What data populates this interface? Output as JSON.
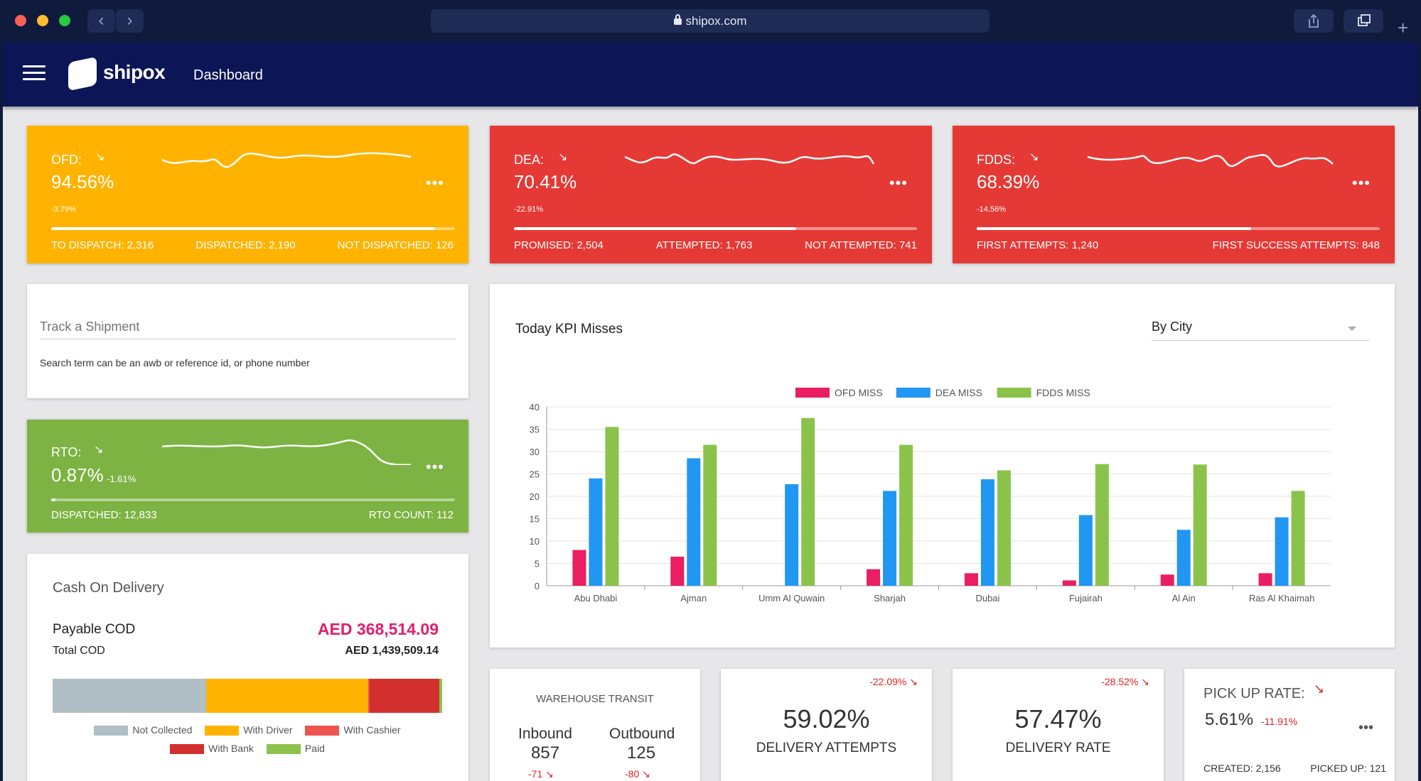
{
  "browser": {
    "url": "shipox.com"
  },
  "app": {
    "logo_text": "shipox",
    "page_title": "Dashboard"
  },
  "kpis": [
    {
      "label": "OFD:",
      "value": "94.56%",
      "delta": "-3.79%",
      "progress": 0.95,
      "color": "#ffb300",
      "stats": [
        "TO DISPATCH: 2,316",
        "DISPATCHED: 2,190",
        "NOT DISPATCHED: 126"
      ]
    },
    {
      "label": "DEA:",
      "value": "70.41%",
      "delta": "-22.91%",
      "progress": 0.7,
      "color": "#e53935",
      "stats": [
        "PROMISED: 2,504",
        "ATTEMPTED: 1,763",
        "NOT ATTEMPTED: 741"
      ]
    },
    {
      "label": "FDDS:",
      "value": "68.39%",
      "delta": "-14.56%",
      "progress": 0.68,
      "color": "#e53935",
      "stats": [
        "FIRST ATTEMPTS: 1,240",
        "FIRST SUCCESS ATTEMPTS: 848"
      ]
    }
  ],
  "track": {
    "placeholder": "Track a Shipment",
    "hint": "Search term can be an awb or reference id, or phone number"
  },
  "rto": {
    "label": "RTO:",
    "value": "0.87%",
    "delta": "-1.61%",
    "progress": 0.01,
    "color": "#7cb342",
    "stats": [
      "DISPATCHED: 12,833",
      "RTO COUNT: 112"
    ]
  },
  "cod": {
    "title": "Cash On Delivery",
    "payable_label": "Payable COD",
    "payable_value": "AED 368,514.09",
    "total_label": "Total COD",
    "total_value": "AED 1,439,509.14",
    "segments": [
      {
        "name": "Not Collected",
        "share": 0.395,
        "color": "#b0bec5"
      },
      {
        "name": "With Driver",
        "share": 0.415,
        "color": "#ffb300"
      },
      {
        "name": "With Cashier",
        "share": 0.004,
        "color": "#ef5350"
      },
      {
        "name": "With Bank",
        "share": 0.178,
        "color": "#d32f2f"
      },
      {
        "name": "Paid",
        "share": 0.008,
        "color": "#8bc34a"
      }
    ]
  },
  "kpi_chart": {
    "title": "Today KPI Misses",
    "filter": "By City"
  },
  "chart_data": {
    "type": "bar",
    "categories": [
      "Abu Dhabi",
      "Ajman",
      "Umm Al Quwain",
      "Sharjah",
      "Dubai",
      "Fujairah",
      "Al Ain",
      "Ras Al Khaimah"
    ],
    "series": [
      {
        "name": "OFD MISS",
        "color": "#e91e63",
        "values": [
          8,
          6.5,
          0,
          3.7,
          2.8,
          1.2,
          2.5,
          2.8
        ]
      },
      {
        "name": "DEA MISS",
        "color": "#2196f3",
        "values": [
          24,
          28.5,
          22.7,
          21.2,
          23.8,
          15.8,
          12.5,
          15.3
        ]
      },
      {
        "name": "FDDS MISS",
        "color": "#8bc34a",
        "values": [
          35.5,
          31.5,
          37.5,
          31.5,
          25.8,
          27.2,
          27.1,
          21.2
        ]
      }
    ],
    "ylim": [
      0,
      40
    ],
    "yticks": [
      0,
      5,
      10,
      15,
      20,
      25,
      30,
      35,
      40
    ],
    "legend": "top",
    "grid": true
  },
  "warehouse": {
    "title": "WAREHOUSE TRANSIT",
    "inbound_label": "Inbound",
    "inbound_value": "857",
    "inbound_delta": "-71",
    "outbound_label": "Outbound",
    "outbound_value": "125",
    "outbound_delta": "-80"
  },
  "delivery_attempts": {
    "value": "59.02%",
    "label": "DELIVERY ATTEMPTS",
    "delta": "-22.09%"
  },
  "delivery_rate": {
    "value": "57.47%",
    "label": "DELIVERY RATE",
    "delta": "-28.52%"
  },
  "pickup": {
    "label": "PICK UP RATE:",
    "value": "5.61%",
    "delta": "-11.91%",
    "created": "CREATED: 2,156",
    "picked": "PICKED UP: 121"
  }
}
